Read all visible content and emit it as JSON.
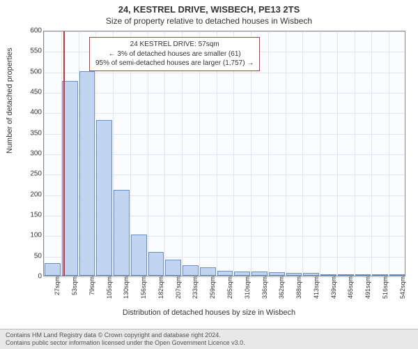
{
  "title_main": "24, KESTREL DRIVE, WISBECH, PE13 2TS",
  "title_sub": "Size of property relative to detached houses in Wisbech",
  "y_axis_label": "Number of detached properties",
  "x_axis_label": "Distribution of detached houses by size in Wisbech",
  "chart": {
    "type": "histogram",
    "background_color": "#fafcff",
    "grid_color": "#e0e6ef",
    "bar_fill": "#c2d5f0",
    "bar_border": "#6a8fc7",
    "marker_color": "#d13030",
    "y_min": 0,
    "y_max": 600,
    "y_tick_step": 50,
    "y_ticks": [
      0,
      50,
      100,
      150,
      200,
      250,
      300,
      350,
      400,
      450,
      500,
      550,
      600
    ],
    "x_ticks": [
      "27sqm",
      "53sqm",
      "79sqm",
      "105sqm",
      "130sqm",
      "156sqm",
      "182sqm",
      "207sqm",
      "233sqm",
      "259sqm",
      "285sqm",
      "310sqm",
      "336sqm",
      "362sqm",
      "388sqm",
      "413sqm",
      "439sqm",
      "465sqm",
      "491sqm",
      "516sqm",
      "542sqm"
    ],
    "bars": [
      30,
      475,
      500,
      380,
      210,
      100,
      58,
      40,
      25,
      20,
      12,
      10,
      10,
      8,
      6,
      6,
      4,
      3,
      3,
      2,
      2
    ],
    "marker_index": 1.15,
    "info_lines": [
      "24 KESTREL DRIVE: 57sqm",
      "← 3% of detached houses are smaller (61)",
      "95% of semi-detached houses are larger (1,757) →"
    ]
  },
  "footer": {
    "line1": "Contains HM Land Registry data © Crown copyright and database right 2024.",
    "line2": "Contains public sector information licensed under the Open Government Licence v3.0."
  }
}
